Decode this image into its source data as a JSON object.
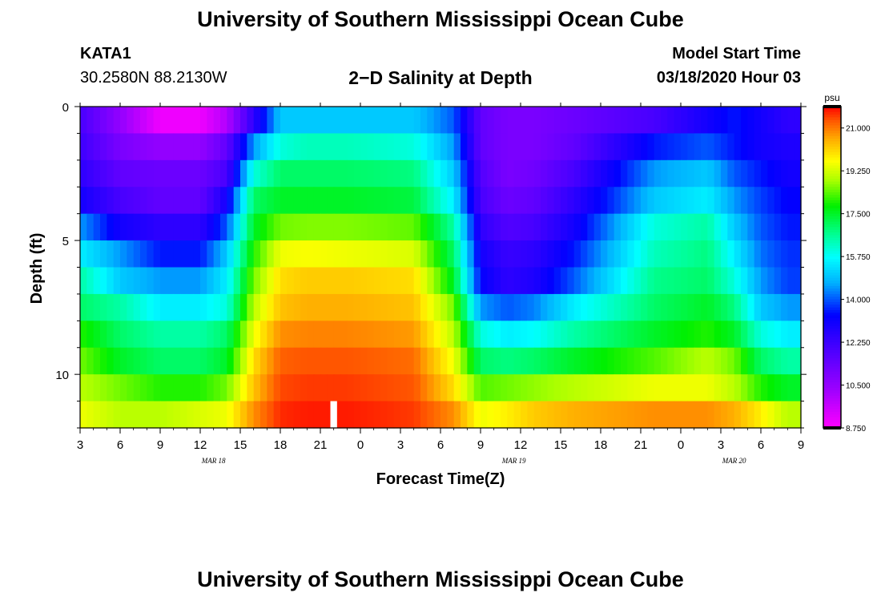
{
  "header": {
    "title": "University of Southern Mississippi Ocean Cube",
    "station_id": "KATA1",
    "coordinates": "30.2580N 88.2130W",
    "plot_title": "2−D Salinity at Depth",
    "model_start_label": "Model Start Time",
    "model_start_value": "03/18/2020 Hour 03"
  },
  "footer": {
    "title": "University of Southern Mississippi Ocean Cube"
  },
  "chart_data": {
    "type": "heatmap",
    "title": "2-D Salinity at Depth",
    "xlabel": "Forecast Time(Z)",
    "ylabel": "Depth (ft)",
    "x_tick_labels": [
      "3",
      "6",
      "9",
      "12",
      "15",
      "18",
      "21",
      "0",
      "3",
      "6",
      "9",
      "12",
      "15",
      "18",
      "21",
      "0",
      "3",
      "6",
      "9"
    ],
    "x_range_hours": [
      0,
      54
    ],
    "date_labels": [
      {
        "label": "MAR 18",
        "hour": 10
      },
      {
        "label": "MAR 19",
        "hour": 32.5
      },
      {
        "label": "MAR 20",
        "hour": 49
      }
    ],
    "y_range_ft": [
      0,
      12
    ],
    "y_ticks": [
      0,
      5,
      10
    ],
    "depth_rows_ft": [
      0.5,
      1.5,
      2.5,
      3.5,
      4.5,
      5.5,
      6.5,
      7.5,
      8.5,
      9.5,
      10.5,
      11.5
    ],
    "colorbar": {
      "unit": "psu",
      "min": 8.75,
      "max": 21.875,
      "tick_labels": [
        "21.000",
        "19.250",
        "17.500",
        "15.750",
        "14.000",
        "12.250",
        "10.500",
        "8.750"
      ]
    },
    "salinity_profiles": {
      "hours": [
        0,
        3,
        6,
        9,
        11,
        13,
        15,
        17,
        20,
        25,
        28,
        30,
        32,
        34,
        37,
        43,
        47,
        49,
        51,
        53,
        54
      ],
      "depth_rows": [
        {
          "depth_ft": 0.5,
          "psu": [
            12.0,
            10.5,
            9.0,
            9.0,
            10.0,
            12.5,
            15.0,
            15.0,
            15.0,
            15.0,
            14.0,
            11.5,
            11.0,
            11.0,
            11.3,
            12.0,
            13.0,
            13.5,
            13.0,
            12.5,
            12.5
          ]
        },
        {
          "depth_ft": 1.5,
          "psu": [
            12.2,
            11.0,
            10.5,
            10.5,
            11.5,
            14.5,
            16.0,
            16.3,
            16.3,
            16.0,
            14.5,
            11.5,
            11.0,
            11.0,
            11.5,
            13.5,
            14.0,
            13.5,
            13.0,
            12.8,
            12.8
          ]
        },
        {
          "depth_ft": 2.5,
          "psu": [
            12.5,
            11.5,
            11.3,
            11.3,
            12.0,
            16.0,
            17.0,
            17.0,
            17.0,
            16.8,
            15.0,
            11.8,
            11.0,
            11.2,
            12.0,
            14.5,
            15.0,
            14.0,
            13.5,
            13.0,
            13.0
          ]
        },
        {
          "depth_ft": 3.5,
          "psu": [
            13.0,
            12.0,
            11.5,
            11.5,
            13.0,
            17.0,
            17.5,
            17.5,
            17.5,
            17.3,
            15.5,
            12.0,
            11.3,
            11.5,
            12.5,
            15.0,
            15.5,
            14.5,
            13.8,
            13.3,
            13.3
          ]
        },
        {
          "depth_ft": 4.5,
          "psu": [
            14.5,
            13.0,
            12.5,
            12.5,
            14.0,
            17.5,
            18.5,
            18.6,
            18.6,
            18.4,
            16.5,
            12.5,
            11.8,
            12.0,
            13.0,
            16.0,
            16.5,
            15.0,
            14.0,
            13.5,
            13.5
          ]
        },
        {
          "depth_ft": 5.5,
          "psu": [
            15.5,
            14.5,
            13.5,
            13.5,
            15.0,
            18.0,
            19.5,
            19.6,
            19.5,
            19.3,
            17.0,
            13.0,
            12.3,
            12.5,
            13.5,
            16.3,
            16.8,
            15.5,
            14.2,
            13.7,
            13.7
          ]
        },
        {
          "depth_ft": 6.5,
          "psu": [
            16.5,
            15.0,
            14.5,
            14.5,
            15.5,
            18.5,
            20.0,
            20.2,
            20.2,
            20.0,
            17.5,
            13.3,
            12.5,
            12.8,
            14.0,
            16.7,
            17.0,
            16.0,
            14.5,
            13.8,
            13.8
          ]
        },
        {
          "depth_ft": 7.5,
          "psu": [
            17.0,
            16.5,
            15.5,
            15.5,
            16.0,
            19.0,
            20.3,
            20.5,
            20.5,
            20.3,
            18.5,
            14.5,
            14.0,
            14.3,
            15.5,
            17.0,
            17.5,
            16.8,
            15.0,
            14.5,
            14.5
          ]
        },
        {
          "depth_ft": 8.5,
          "psu": [
            18.0,
            17.0,
            16.5,
            16.5,
            17.0,
            19.5,
            20.8,
            20.9,
            20.9,
            20.7,
            19.0,
            16.0,
            15.5,
            15.7,
            16.5,
            17.5,
            18.0,
            17.5,
            16.0,
            15.5,
            15.5
          ]
        },
        {
          "depth_ft": 9.5,
          "psu": [
            18.5,
            17.5,
            17.0,
            17.0,
            17.5,
            20.0,
            21.2,
            21.3,
            21.3,
            21.1,
            19.5,
            17.0,
            16.8,
            17.0,
            17.5,
            18.3,
            19.0,
            18.5,
            17.0,
            16.5,
            16.5
          ]
        },
        {
          "depth_ft": 10.5,
          "psu": [
            19.0,
            18.5,
            18.0,
            18.0,
            18.5,
            20.3,
            21.4,
            21.5,
            21.5,
            21.3,
            20.0,
            18.3,
            18.5,
            18.7,
            19.0,
            19.5,
            19.5,
            19.0,
            18.0,
            17.5,
            17.5
          ]
        },
        {
          "depth_ft": 11.5,
          "psu": [
            19.5,
            19.0,
            19.0,
            19.3,
            19.5,
            20.8,
            21.6,
            21.7,
            21.7,
            21.5,
            20.8,
            19.5,
            19.8,
            20.2,
            20.5,
            20.8,
            20.8,
            20.5,
            19.8,
            19.0,
            19.0
          ]
        }
      ]
    },
    "missing_cells": [
      {
        "hour": 19,
        "depth_ft": 11.5
      }
    ]
  }
}
